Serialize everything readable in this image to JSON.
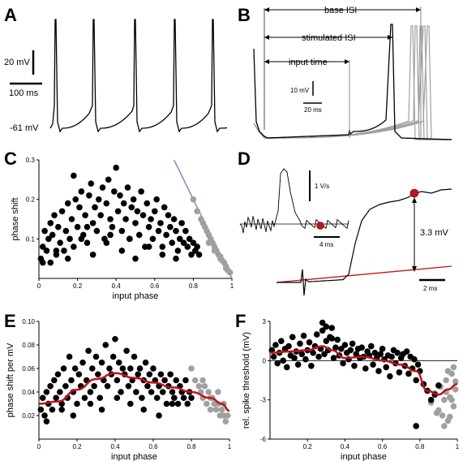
{
  "colors": {
    "black": "#000000",
    "gray": "#a0a0a0",
    "red": "#c0141a",
    "blue": "#8a8fd6"
  },
  "panels": {
    "A": {
      "label": "A",
      "scale_mv": "20 mV",
      "scale_ms": "100 ms",
      "rest_label": "-61 mV"
    },
    "B": {
      "label": "B",
      "base_isi": "base ISI",
      "stimulated_isi": "stimulated ISI",
      "input_time": "input time",
      "scale_mv": "10 mV",
      "scale_ms": "20 ms"
    },
    "C": {
      "label": "C"
    },
    "D": {
      "label": "D",
      "scale_deriv": "1 V/s",
      "scale_ms_inset": "4 ms",
      "amplitude": "3.3 mV",
      "scale_ms": "2 ms"
    },
    "E": {
      "label": "E"
    },
    "F": {
      "label": "F"
    }
  },
  "chart_data": [
    {
      "type": "scatter",
      "panel": "C",
      "xlabel": "input phase",
      "ylabel": "phase shift",
      "xlim": [
        0,
        1
      ],
      "ylim": [
        0,
        0.3
      ],
      "xticks": [
        "0",
        "0.2",
        "0.4",
        "0.6",
        "0.8",
        "1"
      ],
      "yticks": [
        "0.1",
        "0.2",
        "0.3"
      ],
      "black_x": [
        0.01,
        0.02,
        0.03,
        0.04,
        0.05,
        0.06,
        0.06,
        0.07,
        0.08,
        0.09,
        0.1,
        0.11,
        0.12,
        0.13,
        0.14,
        0.15,
        0.16,
        0.17,
        0.18,
        0.18,
        0.19,
        0.2,
        0.21,
        0.22,
        0.23,
        0.24,
        0.25,
        0.26,
        0.27,
        0.28,
        0.29,
        0.3,
        0.31,
        0.32,
        0.33,
        0.34,
        0.35,
        0.36,
        0.37,
        0.38,
        0.39,
        0.4,
        0.41,
        0.42,
        0.43,
        0.44,
        0.45,
        0.46,
        0.47,
        0.48,
        0.49,
        0.5,
        0.51,
        0.52,
        0.53,
        0.54,
        0.55,
        0.56,
        0.57,
        0.58,
        0.59,
        0.6,
        0.61,
        0.62,
        0.63,
        0.64,
        0.65,
        0.66,
        0.67,
        0.68,
        0.69,
        0.7,
        0.71,
        0.72,
        0.73,
        0.74,
        0.75,
        0.76,
        0.77,
        0.78,
        0.79,
        0.8,
        0.81,
        0.82,
        0.83,
        0.02,
        0.09,
        0.15,
        0.22,
        0.28,
        0.35,
        0.43,
        0.5,
        0.57,
        0.64,
        0.71,
        0.25,
        0.37,
        0.47
      ],
      "black_y": [
        0.05,
        0.08,
        0.12,
        0.07,
        0.1,
        0.04,
        0.14,
        0.11,
        0.16,
        0.06,
        0.13,
        0.09,
        0.17,
        0.07,
        0.12,
        0.19,
        0.1,
        0.15,
        0.26,
        0.08,
        0.2,
        0.13,
        0.18,
        0.22,
        0.11,
        0.16,
        0.09,
        0.21,
        0.24,
        0.14,
        0.18,
        0.12,
        0.2,
        0.16,
        0.23,
        0.1,
        0.19,
        0.25,
        0.15,
        0.13,
        0.22,
        0.28,
        0.17,
        0.21,
        0.12,
        0.19,
        0.15,
        0.23,
        0.1,
        0.18,
        0.2,
        0.14,
        0.17,
        0.11,
        0.22,
        0.16,
        0.08,
        0.19,
        0.13,
        0.15,
        0.1,
        0.17,
        0.2,
        0.12,
        0.14,
        0.08,
        0.18,
        0.11,
        0.16,
        0.13,
        0.09,
        0.15,
        0.12,
        0.07,
        0.1,
        0.14,
        0.09,
        0.12,
        0.08,
        0.1,
        0.06,
        0.09,
        0.07,
        0.08,
        0.06,
        0.04,
        0.07,
        0.05,
        0.1,
        0.06,
        0.09,
        0.07,
        0.05,
        0.08,
        0.06,
        0.05,
        0.13,
        0.11,
        0.1
      ],
      "gray_x": [
        0.8,
        0.82,
        0.84,
        0.85,
        0.86,
        0.87,
        0.88,
        0.89,
        0.9,
        0.91,
        0.92,
        0.93,
        0.94,
        0.95,
        0.96,
        0.97,
        0.98,
        0.99,
        0.88,
        0.91,
        0.94,
        0.97
      ],
      "gray_y": [
        0.2,
        0.17,
        0.15,
        0.14,
        0.13,
        0.12,
        0.11,
        0.1,
        0.09,
        0.08,
        0.07,
        0.06,
        0.055,
        0.045,
        0.04,
        0.03,
        0.02,
        0.015,
        0.09,
        0.07,
        0.05,
        0.025
      ],
      "bound_line": [
        [
          0.7,
          0.3
        ],
        [
          1,
          0
        ]
      ]
    },
    {
      "type": "scatter",
      "panel": "E",
      "xlabel": "input phase",
      "ylabel": "phase shift per mV",
      "xlim": [
        0,
        1
      ],
      "ylim": [
        0,
        0.1
      ],
      "xticks": [
        "0",
        "0.2",
        "0.4",
        "0.6",
        "0.8",
        "1"
      ],
      "yticks": [
        "0.02",
        "0.04",
        "0.06",
        "0.08",
        "0.10"
      ],
      "black_x": [
        0.01,
        0.02,
        0.03,
        0.04,
        0.05,
        0.06,
        0.07,
        0.08,
        0.09,
        0.1,
        0.11,
        0.12,
        0.13,
        0.14,
        0.15,
        0.16,
        0.17,
        0.18,
        0.19,
        0.2,
        0.21,
        0.22,
        0.23,
        0.24,
        0.25,
        0.26,
        0.27,
        0.28,
        0.29,
        0.3,
        0.31,
        0.32,
        0.33,
        0.34,
        0.35,
        0.36,
        0.37,
        0.38,
        0.39,
        0.4,
        0.41,
        0.42,
        0.43,
        0.44,
        0.45,
        0.46,
        0.47,
        0.48,
        0.49,
        0.5,
        0.51,
        0.52,
        0.53,
        0.54,
        0.55,
        0.56,
        0.57,
        0.58,
        0.59,
        0.6,
        0.61,
        0.62,
        0.63,
        0.64,
        0.65,
        0.66,
        0.67,
        0.68,
        0.69,
        0.7,
        0.71,
        0.72,
        0.73,
        0.74,
        0.75,
        0.76,
        0.77,
        0.78,
        0.79,
        0.8,
        0.04,
        0.12,
        0.18,
        0.27,
        0.33,
        0.41,
        0.48,
        0.55,
        0.63,
        0.7
      ],
      "black_y": [
        0.025,
        0.035,
        0.02,
        0.04,
        0.03,
        0.045,
        0.025,
        0.05,
        0.035,
        0.055,
        0.04,
        0.03,
        0.06,
        0.045,
        0.035,
        0.07,
        0.05,
        0.04,
        0.06,
        0.03,
        0.055,
        0.045,
        0.065,
        0.035,
        0.05,
        0.075,
        0.04,
        0.06,
        0.045,
        0.07,
        0.055,
        0.035,
        0.065,
        0.05,
        0.08,
        0.045,
        0.06,
        0.055,
        0.07,
        0.085,
        0.05,
        0.065,
        0.04,
        0.06,
        0.055,
        0.075,
        0.045,
        0.06,
        0.05,
        0.07,
        0.04,
        0.055,
        0.06,
        0.035,
        0.05,
        0.065,
        0.045,
        0.055,
        0.04,
        0.06,
        0.05,
        0.035,
        0.045,
        0.055,
        0.04,
        0.05,
        0.03,
        0.045,
        0.055,
        0.04,
        0.035,
        0.05,
        0.03,
        0.045,
        0.04,
        0.035,
        0.05,
        0.03,
        0.04,
        0.035,
        0.015,
        0.025,
        0.02,
        0.03,
        0.025,
        0.035,
        0.03,
        0.025,
        0.02,
        0.03
      ],
      "gray_x": [
        0.8,
        0.82,
        0.84,
        0.85,
        0.86,
        0.87,
        0.88,
        0.89,
        0.9,
        0.91,
        0.92,
        0.93,
        0.94,
        0.95,
        0.96,
        0.97,
        0.98,
        0.86,
        0.9,
        0.94,
        0.97,
        0.99
      ],
      "gray_y": [
        0.06,
        0.05,
        0.045,
        0.04,
        0.035,
        0.045,
        0.03,
        0.04,
        0.025,
        0.035,
        0.03,
        0.025,
        0.03,
        0.02,
        0.025,
        0.02,
        0.015,
        0.05,
        0.035,
        0.04,
        0.03,
        0.02
      ],
      "fit_x": [
        0,
        0.1,
        0.2,
        0.3,
        0.4,
        0.5,
        0.6,
        0.7,
        0.8,
        0.9,
        0.96,
        1
      ],
      "fit_y": [
        0.03,
        0.032,
        0.042,
        0.051,
        0.056,
        0.052,
        0.048,
        0.044,
        0.04,
        0.035,
        0.03,
        0.024
      ]
    },
    {
      "type": "scatter",
      "panel": "F",
      "xlabel": "input phase",
      "ylabel": "rel. spike threshold (mV)",
      "xlim": [
        0,
        1
      ],
      "ylim": [
        -6,
        3
      ],
      "xticks": [
        "0.2",
        "0.4",
        "0.6",
        "0.8",
        "1"
      ],
      "yticks": [
        "3",
        "0",
        "-3",
        "-6"
      ],
      "black_x": [
        0.01,
        0.02,
        0.03,
        0.04,
        0.05,
        0.06,
        0.07,
        0.08,
        0.09,
        0.1,
        0.11,
        0.12,
        0.13,
        0.14,
        0.15,
        0.16,
        0.17,
        0.18,
        0.19,
        0.2,
        0.21,
        0.22,
        0.23,
        0.24,
        0.25,
        0.26,
        0.27,
        0.28,
        0.29,
        0.3,
        0.31,
        0.32,
        0.33,
        0.34,
        0.35,
        0.36,
        0.37,
        0.38,
        0.39,
        0.4,
        0.41,
        0.42,
        0.43,
        0.44,
        0.45,
        0.46,
        0.47,
        0.48,
        0.49,
        0.5,
        0.51,
        0.52,
        0.53,
        0.54,
        0.55,
        0.56,
        0.57,
        0.58,
        0.59,
        0.6,
        0.61,
        0.62,
        0.63,
        0.64,
        0.65,
        0.66,
        0.67,
        0.68,
        0.69,
        0.7,
        0.71,
        0.72,
        0.73,
        0.74,
        0.75,
        0.76,
        0.77,
        0.78,
        0.79,
        0.8,
        0.82,
        0.84,
        0.86,
        0.88,
        0.9,
        0.28,
        0.3,
        0.33,
        0.78
      ],
      "black_y": [
        0.8,
        0.3,
        1.2,
        -0.2,
        0.6,
        1.5,
        0,
        0.9,
        -0.5,
        1.1,
        0.4,
        1.8,
        0.2,
        0.7,
        -0.3,
        1.3,
        0.5,
        1.9,
        0.1,
        0.8,
        1.4,
        -0.4,
        0.6,
        1.1,
        2.0,
        0.3,
        0.9,
        2.3,
        0.5,
        1.5,
        0.8,
        1.8,
        2.5,
        0.2,
        1.0,
        1.6,
        0.4,
        0.9,
        -0.2,
        1.2,
        0.6,
        0.1,
        0.8,
        1.3,
        -0.4,
        0.5,
        0.9,
        0.2,
        1.0,
        0.3,
        -0.6,
        0.7,
        0.4,
        1.1,
        -0.3,
        0.6,
        0.2,
        -0.8,
        0.5,
        0.9,
        0.1,
        -0.5,
        0.4,
        -1.2,
        0.3,
        0.8,
        -0.2,
        0.6,
        -0.9,
        0.2,
        0.5,
        -0.4,
        0.7,
        -1.0,
        0.3,
        -0.6,
        0.1,
        -1.5,
        -0.3,
        -0.8,
        -1.8,
        -2.3,
        -3.0,
        -2.6,
        -1.9,
        2.9,
        2.6,
        1.7,
        -5.0
      ],
      "gray_x": [
        0.86,
        0.88,
        0.9,
        0.91,
        0.92,
        0.93,
        0.94,
        0.95,
        0.96,
        0.97,
        0.98,
        0.99,
        0.89,
        0.93,
        0.95,
        0.97,
        0.99,
        0.94,
        0.96,
        0.98
      ],
      "gray_y": [
        -3.2,
        -2.5,
        -3.8,
        -2.0,
        -4.2,
        -3.0,
        -1.5,
        -4.6,
        -2.8,
        -1.0,
        -3.5,
        -2.2,
        -4.0,
        -5.0,
        -0.8,
        -3.0,
        -1.6,
        -2.4,
        -4.3,
        -0.5
      ],
      "fit_x": [
        0,
        0.1,
        0.2,
        0.28,
        0.33,
        0.4,
        0.5,
        0.6,
        0.7,
        0.78,
        0.84,
        0.9,
        0.95,
        1
      ],
      "fit_y": [
        0.6,
        0.7,
        0.8,
        1.1,
        0.8,
        0.2,
        0.3,
        0.0,
        -0.3,
        -0.8,
        -2.3,
        -2.6,
        -2.2,
        -1.8
      ]
    }
  ]
}
